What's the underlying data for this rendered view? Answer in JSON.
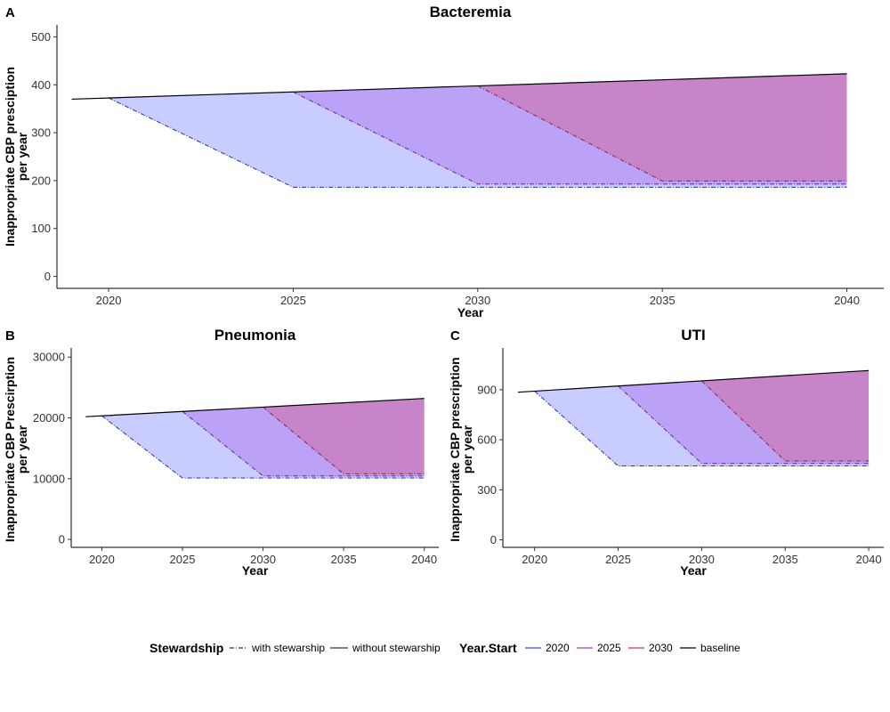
{
  "legend": {
    "stewardship": {
      "title": "Stewardship",
      "items": [
        {
          "label": "with stewarship",
          "dash": "dotdash"
        },
        {
          "label": "without stewarship",
          "dash": "solid"
        }
      ]
    },
    "year_start": {
      "title": "Year.Start",
      "items": [
        {
          "label": "2020",
          "color": "#3b4cff"
        },
        {
          "label": "2025",
          "color": "#a23be0"
        },
        {
          "label": "2030",
          "color": "#e8333a"
        },
        {
          "label": "baseline",
          "color": "#000000"
        }
      ]
    }
  },
  "colors": {
    "fill_2020": "#c9ccff",
    "fill_2025": "#bba2f7",
    "fill_2030": "#c884c8",
    "baseline": "#000000"
  },
  "chart_data": [
    {
      "type": "area",
      "panel": "A",
      "title": "Bacteremia",
      "xlabel": "Year",
      "ylabel": [
        "Inappropriate CBP presciption",
        "per year"
      ],
      "xlim": [
        2018.6,
        2041.0
      ],
      "ylim": [
        -25,
        525
      ],
      "xticks": [
        2020,
        2025,
        2030,
        2035,
        2040
      ],
      "yticks": [
        0,
        100,
        200,
        300,
        400,
        500
      ],
      "grid": false,
      "baseline": {
        "x": [
          2019,
          2040
        ],
        "y": [
          370,
          423
        ]
      },
      "scenarios": [
        {
          "start": 2020,
          "reach": 2025,
          "floor": 186
        },
        {
          "start": 2025,
          "reach": 2030,
          "floor": 193
        },
        {
          "start": 2030,
          "reach": 2035,
          "floor": 199
        }
      ]
    },
    {
      "type": "area",
      "panel": "B",
      "title": "Pneumonia",
      "xlabel": "Year",
      "ylabel": [
        "Inappropriate CBP Prescirption",
        "per year"
      ],
      "xlim": [
        2018.1,
        2040.9
      ],
      "ylim": [
        -1300,
        31500
      ],
      "xticks": [
        2020,
        2025,
        2030,
        2035,
        2040
      ],
      "yticks": [
        0,
        10000,
        20000,
        30000
      ],
      "grid": false,
      "baseline": {
        "x": [
          2019,
          2040
        ],
        "y": [
          20200,
          23200
        ]
      },
      "scenarios": [
        {
          "start": 2020,
          "reach": 2025,
          "floor": 10100
        },
        {
          "start": 2025,
          "reach": 2030,
          "floor": 10450
        },
        {
          "start": 2030,
          "reach": 2035,
          "floor": 10800
        }
      ]
    },
    {
      "type": "area",
      "panel": "C",
      "title": "UTI",
      "xlabel": "Year",
      "ylabel": [
        "Inappropriate CBP prescription",
        "per year"
      ],
      "xlim": [
        2018.1,
        2040.9
      ],
      "ylim": [
        -45,
        1150
      ],
      "xticks": [
        2020,
        2025,
        2030,
        2035,
        2040
      ],
      "yticks": [
        0,
        300,
        600,
        900
      ],
      "grid": false,
      "baseline": {
        "x": [
          2019,
          2040
        ],
        "y": [
          885,
          1015
        ]
      },
      "scenarios": [
        {
          "start": 2020,
          "reach": 2025,
          "floor": 443
        },
        {
          "start": 2025,
          "reach": 2030,
          "floor": 458
        },
        {
          "start": 2030,
          "reach": 2035,
          "floor": 473
        }
      ]
    }
  ]
}
